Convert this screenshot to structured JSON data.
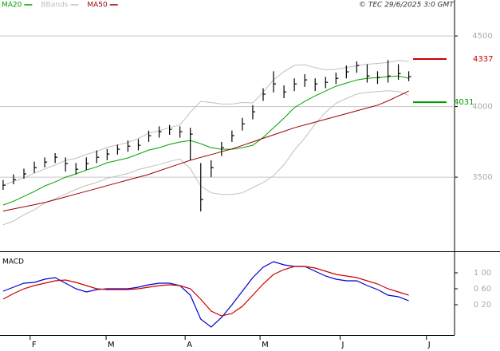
{
  "chart_data": [
    {
      "type": "ohlc",
      "annotation": "© TEC 29/6/2025 3:0 GMT",
      "x": [
        0,
        1,
        2,
        3,
        4,
        5,
        6,
        7,
        8,
        9,
        10,
        11,
        12,
        13,
        14,
        15,
        16,
        17,
        18,
        19,
        20,
        21,
        22,
        23,
        24,
        25,
        26,
        27,
        28,
        29,
        30,
        31,
        32,
        33,
        34,
        35,
        36,
        37,
        38,
        39
      ],
      "high": [
        3480,
        3520,
        3560,
        3610,
        3640,
        3670,
        3640,
        3600,
        3640,
        3690,
        3700,
        3730,
        3760,
        3770,
        3830,
        3860,
        3870,
        3860,
        3850,
        3600,
        3620,
        3750,
        3830,
        3920,
        4010,
        4130,
        4250,
        4150,
        4200,
        4230,
        4200,
        4210,
        4240,
        4290,
        4320,
        4300,
        4250,
        4330,
        4300,
        4250
      ],
      "low": [
        3410,
        3450,
        3490,
        3530,
        3570,
        3600,
        3540,
        3520,
        3550,
        3600,
        3620,
        3660,
        3680,
        3690,
        3750,
        3780,
        3800,
        3780,
        3620,
        3257,
        3500,
        3650,
        3750,
        3830,
        3910,
        4040,
        4100,
        4060,
        4110,
        4140,
        4110,
        4130,
        4160,
        4200,
        4240,
        4170,
        4160,
        4170,
        4190,
        4180
      ],
      "close": [
        3443,
        3483,
        3523,
        3568,
        3607,
        3641,
        3596,
        3556,
        3596,
        3641,
        3664,
        3698,
        3720,
        3726,
        3794,
        3822,
        3839,
        3822,
        3805,
        3342,
        3568,
        3709,
        3794,
        3878,
        3963,
        4088,
        4161,
        4104,
        4161,
        4189,
        4161,
        4172,
        4200,
        4246,
        4291,
        4217,
        4206,
        4217,
        4234,
        4212
      ],
      "bar_color": "#000000",
      "series": [
        {
          "name": "MA20",
          "color": "#00a000",
          "values": [
            3302,
            3330,
            3364,
            3398,
            3438,
            3466,
            3500,
            3523,
            3551,
            3573,
            3602,
            3619,
            3636,
            3664,
            3692,
            3709,
            3732,
            3749,
            3760,
            3737,
            3709,
            3698,
            3698,
            3709,
            3726,
            3782,
            3850,
            3918,
            3992,
            4037,
            4076,
            4110,
            4144,
            4167,
            4189,
            4200,
            4206,
            4212,
            4217,
            4200
          ]
        },
        {
          "name": "BBands",
          "color": "#c0c0c0",
          "upper": [
            3442,
            3470,
            3494,
            3528,
            3558,
            3586,
            3620,
            3633,
            3661,
            3683,
            3712,
            3729,
            3746,
            3774,
            3812,
            3829,
            3852,
            3869,
            3960,
            4037,
            4029,
            4018,
            4018,
            4029,
            4026,
            4102,
            4190,
            4248,
            4292,
            4297,
            4276,
            4260,
            4264,
            4277,
            4289,
            4300,
            4306,
            4312,
            4327,
            4320
          ],
          "lower": [
            3162,
            3190,
            3234,
            3268,
            3318,
            3346,
            3380,
            3413,
            3441,
            3463,
            3492,
            3509,
            3526,
            3554,
            3572,
            3589,
            3612,
            3629,
            3560,
            3437,
            3389,
            3378,
            3378,
            3389,
            3426,
            3462,
            3510,
            3588,
            3692,
            3777,
            3876,
            3960,
            4024,
            4057,
            4089,
            4100,
            4106,
            4112,
            4107,
            4080
          ]
        },
        {
          "name": "MA50",
          "color": "#990000",
          "values": [
            3260,
            3275,
            3290,
            3305,
            3320,
            3340,
            3360,
            3380,
            3400,
            3420,
            3440,
            3460,
            3480,
            3500,
            3520,
            3545,
            3570,
            3595,
            3620,
            3640,
            3660,
            3680,
            3700,
            3725,
            3750,
            3775,
            3800,
            3825,
            3850,
            3870,
            3890,
            3910,
            3930,
            3950,
            3970,
            3990,
            4010,
            4040,
            4075,
            4110
          ]
        }
      ],
      "levels": [
        {
          "value": 4337,
          "color": "#cc0000"
        },
        {
          "value": 4031,
          "color": "#009900"
        }
      ],
      "xlim": [
        -0.3,
        43.4
      ],
      "ylim": [
        2975,
        4755
      ],
      "yticks": [
        3500,
        4000,
        4500
      ],
      "grid": true
    },
    {
      "type": "line",
      "title": "MACD",
      "x": [
        0,
        1,
        2,
        3,
        4,
        5,
        6,
        7,
        8,
        9,
        10,
        11,
        12,
        13,
        14,
        15,
        16,
        17,
        18,
        19,
        20,
        21,
        22,
        23,
        24,
        25,
        26,
        27,
        28,
        29,
        30,
        31,
        32,
        33,
        34,
        35,
        36,
        37,
        38,
        39
      ],
      "series": [
        {
          "color": "#0000cc",
          "values": [
            54,
            64,
            74,
            76,
            84,
            88,
            74,
            60,
            52,
            58,
            60,
            60,
            60,
            64,
            70,
            74,
            74,
            68,
            44,
            -16,
            -36,
            -12,
            20,
            54,
            88,
            114,
            128,
            120,
            116,
            116,
            104,
            92,
            84,
            80,
            80,
            68,
            58,
            44,
            40,
            30
          ]
        },
        {
          "color": "#cc0000",
          "values": [
            34,
            48,
            60,
            68,
            74,
            80,
            82,
            76,
            68,
            60,
            58,
            58,
            58,
            60,
            64,
            68,
            70,
            68,
            60,
            34,
            4,
            -8,
            -2,
            16,
            44,
            72,
            96,
            108,
            116,
            116,
            112,
            104,
            96,
            92,
            88,
            80,
            72,
            60,
            52,
            44
          ]
        }
      ],
      "xlim": [
        -0.3,
        43.4
      ],
      "xticks": [
        {
          "value": 2.6,
          "label": "F"
        },
        {
          "value": 9.9,
          "label": "M"
        },
        {
          "value": 17.5,
          "label": "A"
        },
        {
          "value": 24.7,
          "label": "M"
        },
        {
          "value": 32.4,
          "label": "J"
        },
        {
          "value": 40.7,
          "label": "J"
        }
      ],
      "ylim": [
        -56,
        152
      ],
      "yticks": [
        {
          "value": 100,
          "label": "1 00"
        },
        {
          "value": 60,
          "label": "0 60"
        },
        {
          "value": 20,
          "label": "0 20"
        }
      ],
      "grid": false
    }
  ]
}
